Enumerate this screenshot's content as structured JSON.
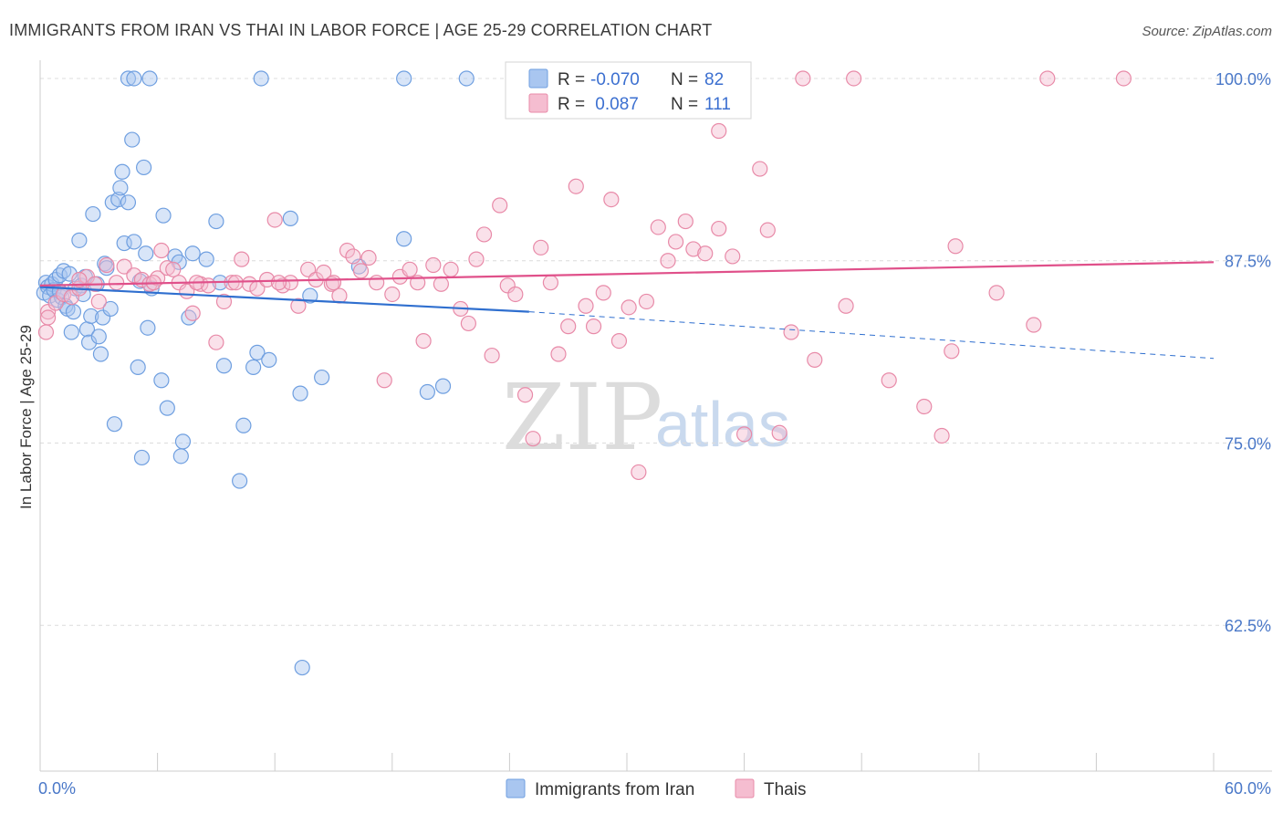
{
  "chart_data": {
    "type": "scatter",
    "title": "IMMIGRANTS FROM IRAN VS THAI IN LABOR FORCE | AGE 25-29 CORRELATION CHART",
    "source": "Source: ZipAtlas.com",
    "ylabel": "In Labor Force | Age 25-29",
    "xlim": [
      0,
      60
    ],
    "ylim": [
      52.5,
      101.5
    ],
    "x_tick_labels": [
      {
        "value": 0,
        "label": "0.0%"
      },
      {
        "value": 60,
        "label": "60.0%"
      }
    ],
    "y_tick_labels": [
      {
        "value": 100,
        "label": "100.0%"
      },
      {
        "value": 87.5,
        "label": "87.5%"
      },
      {
        "value": 75,
        "label": "75.0%"
      },
      {
        "value": 62.5,
        "label": "62.5%"
      }
    ],
    "watermark": {
      "zip": "ZIP",
      "atlas": "atlas"
    },
    "legend": {
      "r_label": "R =",
      "n_label": "N =",
      "entries": [
        {
          "series": "Immigrants from Iran",
          "r": "-0.070",
          "n": "82"
        },
        {
          "series": "Thais",
          "r": " 0.087",
          "n": "111"
        }
      ]
    },
    "series": [
      {
        "name": "Immigrants from Iran",
        "color": "#6f9fe0",
        "fill": "#a9c6f0",
        "line_color": "#2f6fcf",
        "trend": {
          "x0": 0,
          "y0": 85.7,
          "x1": 25,
          "y1": 84.0,
          "x_dash_end": 60,
          "y_dash_end": 80.8
        },
        "points": [
          [
            0.2,
            85.3
          ],
          [
            0.3,
            86.0
          ],
          [
            0.4,
            85.7
          ],
          [
            0.5,
            85.1
          ],
          [
            0.6,
            85.9
          ],
          [
            0.7,
            85.5
          ],
          [
            0.8,
            86.2
          ],
          [
            0.9,
            84.8
          ],
          [
            1.0,
            86.5
          ],
          [
            1.1,
            85.0
          ],
          [
            1.2,
            86.8
          ],
          [
            1.3,
            84.4
          ],
          [
            1.4,
            84.2
          ],
          [
            1.5,
            86.6
          ],
          [
            1.6,
            82.6
          ],
          [
            1.7,
            84.0
          ],
          [
            1.8,
            85.6
          ],
          [
            2.0,
            88.9
          ],
          [
            2.1,
            85.8
          ],
          [
            2.2,
            85.2
          ],
          [
            2.3,
            86.4
          ],
          [
            2.4,
            82.8
          ],
          [
            2.5,
            81.9
          ],
          [
            2.6,
            83.7
          ],
          [
            2.7,
            90.7
          ],
          [
            2.9,
            85.9
          ],
          [
            3.0,
            82.3
          ],
          [
            3.1,
            81.1
          ],
          [
            3.2,
            83.6
          ],
          [
            3.3,
            87.3
          ],
          [
            3.4,
            87.0
          ],
          [
            3.6,
            84.2
          ],
          [
            3.7,
            91.5
          ],
          [
            3.8,
            76.3
          ],
          [
            4.0,
            91.7
          ],
          [
            4.1,
            92.5
          ],
          [
            4.2,
            93.6
          ],
          [
            4.3,
            88.7
          ],
          [
            4.5,
            91.5
          ],
          [
            4.7,
            95.8
          ],
          [
            4.8,
            88.8
          ],
          [
            5.0,
            80.2
          ],
          [
            5.1,
            86.1
          ],
          [
            5.2,
            74.0
          ],
          [
            5.3,
            93.9
          ],
          [
            5.4,
            88.0
          ],
          [
            5.5,
            82.9
          ],
          [
            5.7,
            85.6
          ],
          [
            6.2,
            79.3
          ],
          [
            6.3,
            90.6
          ],
          [
            6.5,
            77.4
          ],
          [
            6.9,
            87.8
          ],
          [
            7.1,
            87.4
          ],
          [
            7.3,
            75.1
          ],
          [
            7.6,
            83.6
          ],
          [
            7.2,
            74.1
          ],
          [
            7.8,
            88.0
          ],
          [
            9.0,
            90.2
          ],
          [
            9.2,
            86.0
          ],
          [
            9.4,
            80.3
          ],
          [
            8.5,
            87.6
          ],
          [
            10.2,
            72.4
          ],
          [
            10.4,
            76.2
          ],
          [
            11.1,
            81.2
          ],
          [
            11.7,
            80.7
          ],
          [
            12.8,
            90.4
          ],
          [
            13.3,
            78.4
          ],
          [
            13.8,
            85.1
          ],
          [
            14.4,
            79.5
          ],
          [
            16.3,
            87.1
          ],
          [
            18.6,
            89.0
          ],
          [
            19.8,
            78.5
          ],
          [
            20.6,
            78.9
          ],
          [
            10.9,
            80.2
          ],
          [
            4.5,
            100.0
          ],
          [
            4.8,
            100.0
          ],
          [
            5.6,
            100.0
          ],
          [
            11.3,
            100.0
          ],
          [
            18.6,
            100.0
          ],
          [
            21.8,
            100.0
          ],
          [
            13.4,
            59.6
          ],
          [
            1.0,
            85.4
          ]
        ]
      },
      {
        "name": "Thais",
        "color": "#e88aa8",
        "fill": "#f5bdd0",
        "line_color": "#e0508a",
        "trend": {
          "x0": 0,
          "y0": 85.8,
          "x1": 60,
          "y1": 87.4
        },
        "points": [
          [
            0.3,
            82.6
          ],
          [
            0.4,
            84.0
          ],
          [
            0.8,
            84.6
          ],
          [
            1.2,
            85.2
          ],
          [
            1.6,
            85.0
          ],
          [
            2.0,
            85.6
          ],
          [
            2.4,
            86.4
          ],
          [
            2.8,
            85.9
          ],
          [
            3.0,
            84.7
          ],
          [
            3.4,
            87.2
          ],
          [
            3.9,
            86.0
          ],
          [
            4.3,
            87.1
          ],
          [
            4.8,
            86.5
          ],
          [
            5.2,
            86.2
          ],
          [
            5.6,
            85.9
          ],
          [
            6.0,
            86.3
          ],
          [
            6.2,
            88.2
          ],
          [
            6.5,
            87.0
          ],
          [
            6.8,
            86.9
          ],
          [
            7.1,
            86.0
          ],
          [
            7.5,
            85.4
          ],
          [
            7.8,
            83.9
          ],
          [
            8.2,
            85.9
          ],
          [
            8.6,
            85.8
          ],
          [
            9.0,
            81.9
          ],
          [
            9.4,
            84.7
          ],
          [
            9.8,
            86.0
          ],
          [
            10.3,
            87.6
          ],
          [
            10.7,
            85.9
          ],
          [
            11.1,
            85.6
          ],
          [
            11.6,
            86.2
          ],
          [
            12.0,
            90.3
          ],
          [
            12.4,
            85.8
          ],
          [
            12.8,
            86.0
          ],
          [
            13.2,
            84.4
          ],
          [
            13.7,
            86.9
          ],
          [
            14.1,
            86.2
          ],
          [
            14.5,
            86.7
          ],
          [
            14.9,
            85.9
          ],
          [
            15.3,
            85.1
          ],
          [
            15.7,
            88.2
          ],
          [
            16.0,
            87.8
          ],
          [
            16.4,
            86.8
          ],
          [
            16.8,
            87.7
          ],
          [
            17.2,
            86.0
          ],
          [
            17.6,
            79.3
          ],
          [
            18.0,
            85.2
          ],
          [
            18.4,
            86.4
          ],
          [
            18.9,
            86.9
          ],
          [
            19.3,
            86.0
          ],
          [
            19.6,
            82.0
          ],
          [
            20.1,
            87.2
          ],
          [
            20.5,
            85.9
          ],
          [
            21.0,
            86.9
          ],
          [
            21.5,
            84.2
          ],
          [
            21.9,
            83.2
          ],
          [
            22.3,
            87.6
          ],
          [
            22.7,
            89.3
          ],
          [
            23.1,
            81.0
          ],
          [
            23.5,
            91.3
          ],
          [
            23.9,
            85.8
          ],
          [
            24.3,
            85.2
          ],
          [
            24.8,
            78.3
          ],
          [
            25.2,
            75.3
          ],
          [
            25.6,
            88.4
          ],
          [
            26.1,
            86.0
          ],
          [
            26.5,
            81.1
          ],
          [
            27.0,
            83.0
          ],
          [
            27.4,
            92.6
          ],
          [
            27.9,
            84.4
          ],
          [
            28.3,
            83.0
          ],
          [
            28.8,
            85.3
          ],
          [
            29.2,
            91.7
          ],
          [
            29.6,
            82.0
          ],
          [
            30.1,
            84.3
          ],
          [
            30.6,
            73.0
          ],
          [
            31.0,
            84.7
          ],
          [
            31.6,
            89.8
          ],
          [
            32.1,
            87.5
          ],
          [
            32.5,
            88.8
          ],
          [
            33.0,
            90.2
          ],
          [
            33.4,
            88.3
          ],
          [
            34.0,
            88.0
          ],
          [
            34.7,
            89.7
          ],
          [
            35.4,
            87.8
          ],
          [
            36.0,
            75.6
          ],
          [
            36.8,
            93.8
          ],
          [
            37.2,
            89.6
          ],
          [
            37.8,
            75.7
          ],
          [
            38.4,
            82.6
          ],
          [
            39.6,
            80.7
          ],
          [
            41.2,
            84.4
          ],
          [
            43.4,
            79.3
          ],
          [
            45.2,
            77.5
          ],
          [
            46.1,
            75.5
          ],
          [
            46.6,
            81.3
          ],
          [
            46.8,
            88.5
          ],
          [
            48.9,
            85.3
          ],
          [
            50.8,
            83.1
          ],
          [
            34.7,
            96.4
          ],
          [
            39.0,
            100.0
          ],
          [
            41.6,
            100.0
          ],
          [
            51.5,
            100.0
          ],
          [
            55.4,
            100.0
          ],
          [
            2.0,
            86.2
          ],
          [
            5.8,
            86.0
          ],
          [
            8.0,
            86.0
          ],
          [
            10.0,
            86.0
          ],
          [
            12.2,
            86.0
          ],
          [
            15.0,
            86.0
          ],
          [
            0.4,
            83.6
          ]
        ]
      }
    ]
  }
}
